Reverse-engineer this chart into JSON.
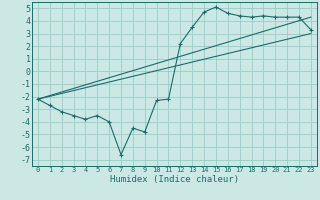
{
  "xlabel": "Humidex (Indice chaleur)",
  "bg_color": "#cce8e5",
  "grid_color": "#99ccc8",
  "line_color": "#1a6b6b",
  "xlim": [
    -0.5,
    23.5
  ],
  "ylim": [
    -7.5,
    5.5
  ],
  "xticks": [
    0,
    1,
    2,
    3,
    4,
    5,
    6,
    7,
    8,
    9,
    10,
    11,
    12,
    13,
    14,
    15,
    16,
    17,
    18,
    19,
    20,
    21,
    22,
    23
  ],
  "yticks": [
    -7,
    -6,
    -5,
    -4,
    -3,
    -2,
    -1,
    0,
    1,
    2,
    3,
    4,
    5
  ],
  "main_x": [
    0,
    1,
    2,
    3,
    4,
    5,
    6,
    7,
    8,
    9,
    10,
    11,
    12,
    13,
    14,
    15,
    16,
    17,
    18,
    19,
    20,
    21,
    22,
    23
  ],
  "main_y": [
    -2.2,
    -2.7,
    -3.2,
    -3.5,
    -3.8,
    -3.5,
    -4.0,
    -6.6,
    -4.5,
    -4.8,
    -2.3,
    -2.2,
    2.2,
    3.5,
    4.7,
    5.1,
    4.6,
    4.4,
    4.3,
    4.4,
    4.3,
    4.3,
    4.3,
    3.3
  ],
  "line1_x": [
    0,
    23
  ],
  "line1_y": [
    -2.2,
    4.3
  ],
  "line2_x": [
    0,
    23
  ],
  "line2_y": [
    -2.2,
    3.0
  ]
}
